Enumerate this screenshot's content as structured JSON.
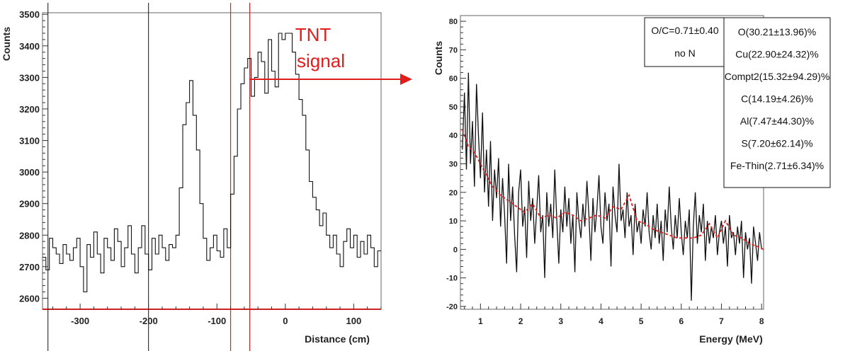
{
  "chart_data": [
    {
      "type": "line",
      "xlabel": "Distance (cm)",
      "ylabel": "Counts",
      "xlim": [
        -355,
        140
      ],
      "ylim": [
        2565,
        3505
      ],
      "xticks": [
        -300,
        -200,
        -100,
        0,
        100
      ],
      "yticks": [
        2600,
        2700,
        2800,
        2900,
        3000,
        3100,
        3200,
        3300,
        3400,
        3500
      ],
      "grid": false,
      "vertical_lines_black": [
        -347,
        -200
      ],
      "vertical_lines_red": [
        -80,
        -52
      ],
      "annotation": {
        "lines": [
          "TNT",
          "signal"
        ]
      },
      "series": [
        {
          "style": "step",
          "color": "#111111",
          "x": [
            -355,
            -350,
            -345,
            -340,
            -335,
            -330,
            -325,
            -320,
            -315,
            -310,
            -305,
            -300,
            -295,
            -290,
            -285,
            -280,
            -275,
            -270,
            -265,
            -260,
            -255,
            -250,
            -245,
            -240,
            -235,
            -230,
            -225,
            -220,
            -215,
            -210,
            -205,
            -200,
            -195,
            -190,
            -185,
            -180,
            -175,
            -170,
            -165,
            -160,
            -155,
            -150,
            -145,
            -140,
            -135,
            -130,
            -125,
            -120,
            -115,
            -110,
            -105,
            -100,
            -95,
            -90,
            -85,
            -80,
            -75,
            -70,
            -65,
            -60,
            -55,
            -50,
            -45,
            -40,
            -35,
            -30,
            -25,
            -20,
            -15,
            -10,
            -5,
            0,
            5,
            10,
            15,
            20,
            25,
            30,
            35,
            40,
            45,
            50,
            55,
            60,
            65,
            70,
            75,
            80,
            85,
            90,
            95,
            100,
            105,
            110,
            115,
            120,
            125,
            130,
            135
          ],
          "y": [
            2730,
            2690,
            2790,
            2760,
            2740,
            2710,
            2770,
            2740,
            2720,
            2760,
            2790,
            2700,
            2620,
            2770,
            2730,
            2810,
            2740,
            2680,
            2790,
            2760,
            2720,
            2820,
            2780,
            2700,
            2760,
            2830,
            2740,
            2680,
            2760,
            2830,
            2740,
            2690,
            2790,
            2740,
            2800,
            2760,
            2720,
            2770,
            2760,
            2800,
            2950,
            3150,
            3220,
            3290,
            3180,
            3070,
            2900,
            2790,
            2720,
            2760,
            2800,
            2750,
            2730,
            2820,
            2760,
            2930,
            3050,
            3200,
            3280,
            3330,
            3360,
            3240,
            3300,
            3380,
            3350,
            3250,
            3420,
            3320,
            3270,
            3440,
            3420,
            3440,
            3440,
            3380,
            3310,
            3230,
            3180,
            3070,
            2970,
            2920,
            2880,
            2830,
            2870,
            2800,
            2760,
            2800,
            2740,
            2700,
            2780,
            2820,
            2760,
            2800,
            2730,
            2780,
            2740,
            2800,
            2760,
            2700,
            2750
          ]
        }
      ]
    },
    {
      "type": "line",
      "xlabel": "Energy (MeV)",
      "ylabel": "Counts",
      "xlim": [
        0.5,
        8.05
      ],
      "ylim": [
        -21,
        82
      ],
      "xticks": [
        1,
        2,
        3,
        4,
        5,
        6,
        7,
        8
      ],
      "yticks": [
        -20,
        -10,
        0,
        10,
        20,
        30,
        40,
        50,
        60,
        70,
        80
      ],
      "grid": false,
      "legend": {
        "ratio": "O/C=0.71±0.40",
        "note": "no N",
        "entries": [
          "O(30.21±13.96)%",
          "Cu(22.90±24.32)%",
          "Compt2(15.32±94.29)%",
          "C(14.19±4.26)%",
          "Al(7.47±44.30)%",
          "S(7.20±62.14)%",
          "Fe-Thin(2.71±6.34)%"
        ]
      },
      "series": [
        {
          "style": "polyline",
          "color": "#111111",
          "x": [
            0.55,
            0.6,
            0.65,
            0.7,
            0.75,
            0.8,
            0.85,
            0.9,
            0.95,
            1.0,
            1.05,
            1.1,
            1.15,
            1.2,
            1.25,
            1.3,
            1.35,
            1.4,
            1.45,
            1.5,
            1.55,
            1.6,
            1.65,
            1.7,
            1.75,
            1.8,
            1.85,
            1.9,
            1.95,
            2.0,
            2.05,
            2.1,
            2.15,
            2.2,
            2.25,
            2.3,
            2.35,
            2.4,
            2.45,
            2.5,
            2.55,
            2.6,
            2.65,
            2.7,
            2.75,
            2.8,
            2.85,
            2.9,
            2.95,
            3.0,
            3.05,
            3.1,
            3.15,
            3.2,
            3.25,
            3.3,
            3.35,
            3.4,
            3.45,
            3.5,
            3.55,
            3.6,
            3.65,
            3.7,
            3.75,
            3.8,
            3.85,
            3.9,
            3.95,
            4.0,
            4.05,
            4.1,
            4.15,
            4.2,
            4.25,
            4.3,
            4.35,
            4.4,
            4.45,
            4.5,
            4.55,
            4.6,
            4.65,
            4.7,
            4.75,
            4.8,
            4.85,
            4.9,
            4.95,
            5.0,
            5.05,
            5.1,
            5.15,
            5.2,
            5.25,
            5.3,
            5.35,
            5.4,
            5.45,
            5.5,
            5.55,
            5.6,
            5.65,
            5.7,
            5.75,
            5.8,
            5.85,
            5.9,
            5.95,
            6.0,
            6.05,
            6.1,
            6.15,
            6.2,
            6.25,
            6.3,
            6.35,
            6.4,
            6.45,
            6.5,
            6.55,
            6.6,
            6.65,
            6.7,
            6.75,
            6.8,
            6.85,
            6.9,
            6.95,
            7.0,
            7.05,
            7.1,
            7.15,
            7.2,
            7.25,
            7.3,
            7.35,
            7.4,
            7.45,
            7.5,
            7.55,
            7.6,
            7.65,
            7.7,
            7.75,
            7.8,
            7.85,
            7.9,
            7.95,
            8.0
          ],
          "y": [
            35,
            55,
            28,
            62,
            30,
            45,
            22,
            58,
            40,
            25,
            48,
            20,
            35,
            15,
            38,
            10,
            28,
            18,
            32,
            8,
            25,
            12,
            -5,
            30,
            10,
            22,
            5,
            -8,
            20,
            28,
            8,
            15,
            -3,
            24,
            10,
            18,
            2,
            14,
            26,
            6,
            12,
            -10,
            20,
            8,
            16,
            4,
            28,
            10,
            -5,
            14,
            6,
            22,
            8,
            18,
            2,
            12,
            -8,
            20,
            10,
            4,
            16,
            8,
            24,
            12,
            -4,
            18,
            6,
            14,
            26,
            8,
            2,
            20,
            10,
            16,
            -6,
            22,
            12,
            6,
            30,
            10,
            14,
            4,
            20,
            8,
            12,
            -2,
            16,
            6,
            10,
            2,
            14,
            8,
            20,
            6,
            0,
            12,
            4,
            16,
            2,
            10,
            -4,
            14,
            6,
            22,
            8,
            0,
            12,
            4,
            18,
            6,
            -2,
            10,
            4,
            14,
            -18,
            8,
            20,
            2,
            12,
            6,
            16,
            -4,
            10,
            2,
            8,
            4,
            12,
            -2,
            6,
            10,
            2,
            8,
            -6,
            12,
            4,
            6,
            -2,
            8,
            2,
            10,
            -10,
            6,
            0,
            4,
            -12,
            8,
            2,
            -4,
            6,
            0
          ]
        },
        {
          "style": "dashed",
          "color": "#e31c1c",
          "x": [
            0.55,
            0.7,
            0.85,
            1.0,
            1.15,
            1.3,
            1.5,
            1.7,
            1.9,
            2.1,
            2.3,
            2.5,
            2.7,
            2.9,
            3.1,
            3.3,
            3.5,
            3.7,
            3.9,
            4.1,
            4.3,
            4.5,
            4.7,
            4.9,
            5.1,
            5.3,
            5.5,
            5.7,
            5.9,
            6.1,
            6.3,
            6.5,
            6.7,
            6.9,
            7.1,
            7.3,
            7.5,
            7.7,
            7.9,
            8.05
          ],
          "y": [
            42,
            36,
            34,
            30,
            26,
            22,
            19,
            17,
            15,
            13,
            16,
            11,
            12,
            11,
            13,
            12,
            10,
            11,
            12,
            11,
            15,
            14,
            19,
            10,
            9,
            7,
            6,
            5,
            4,
            4,
            4,
            5,
            9,
            4,
            10,
            5,
            4,
            2,
            1,
            0
          ]
        }
      ]
    }
  ]
}
